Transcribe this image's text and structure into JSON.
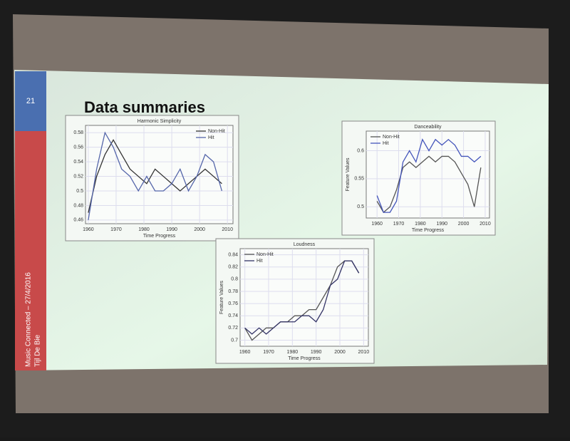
{
  "slide": {
    "number": "21",
    "title": "Data summaries",
    "footer_date": "Music Connected – 27/4/2016",
    "footer_author": "Tijl De Bie"
  },
  "chart_data": [
    {
      "type": "line",
      "title": "Harmonic Simplicity",
      "xlabel": "Time Progress",
      "legend": "upper right",
      "x": [
        1960,
        1963,
        1966,
        1969,
        1972,
        1975,
        1978,
        1981,
        1984,
        1987,
        1990,
        1993,
        1996,
        1999,
        2002,
        2005,
        2008
      ],
      "xlim": [
        1959,
        2012
      ],
      "xticks": [
        1960,
        1970,
        1980,
        1990,
        2000,
        2010
      ],
      "ylim": [
        0.455,
        0.59
      ],
      "yticks": [
        0.46,
        0.48,
        0.5,
        0.52,
        0.54,
        0.56,
        0.58
      ],
      "grid": true,
      "series": [
        {
          "name": "Non-Hit",
          "color": "#333333",
          "values": [
            0.47,
            0.52,
            0.55,
            0.57,
            0.55,
            0.53,
            0.52,
            0.51,
            0.53,
            0.52,
            0.51,
            0.5,
            0.51,
            0.52,
            0.53,
            0.52,
            0.51
          ]
        },
        {
          "name": "Hit",
          "color": "#5566aa",
          "values": [
            0.46,
            0.53,
            0.58,
            0.56,
            0.53,
            0.52,
            0.5,
            0.52,
            0.5,
            0.5,
            0.51,
            0.53,
            0.5,
            0.52,
            0.55,
            0.54,
            0.5
          ]
        }
      ]
    },
    {
      "type": "line",
      "title": "Danceability",
      "xlabel": "Time Progress",
      "ylabel": "Feature Values",
      "legend": "upper left",
      "x": [
        1960,
        1963,
        1966,
        1969,
        1972,
        1975,
        1978,
        1981,
        1984,
        1987,
        1990,
        1993,
        1996,
        1999,
        2002,
        2005,
        2008
      ],
      "xlim": [
        1955,
        2012
      ],
      "xticks": [
        1960,
        1970,
        1980,
        1990,
        2000,
        2010
      ],
      "ylim": [
        0.48,
        0.635
      ],
      "yticks": [
        0.5,
        0.55,
        0.6
      ],
      "grid": true,
      "series": [
        {
          "name": "Non-Hit",
          "color": "#555555",
          "values": [
            0.51,
            0.49,
            0.5,
            0.53,
            0.57,
            0.58,
            0.57,
            0.58,
            0.59,
            0.58,
            0.59,
            0.59,
            0.58,
            0.56,
            0.54,
            0.5,
            0.57
          ]
        },
        {
          "name": "Hit",
          "color": "#4455bb",
          "values": [
            0.52,
            0.49,
            0.49,
            0.51,
            0.58,
            0.6,
            0.58,
            0.62,
            0.6,
            0.62,
            0.61,
            0.62,
            0.61,
            0.59,
            0.59,
            0.58,
            0.59
          ]
        }
      ]
    },
    {
      "type": "line",
      "title": "Loudness",
      "xlabel": "Time Progress",
      "ylabel": "Feature Values",
      "legend": "upper left",
      "x": [
        1960,
        1963,
        1966,
        1969,
        1972,
        1975,
        1978,
        1981,
        1984,
        1987,
        1990,
        1993,
        1996,
        1999,
        2002,
        2005,
        2008
      ],
      "xlim": [
        1958,
        2012
      ],
      "xticks": [
        1960,
        1970,
        1980,
        1990,
        2000,
        2010
      ],
      "ylim": [
        0.69,
        0.85
      ],
      "yticks": [
        0.7,
        0.72,
        0.74,
        0.76,
        0.78,
        0.8,
        0.82,
        0.84
      ],
      "grid": true,
      "series": [
        {
          "name": "Non-Hit",
          "color": "#555555",
          "values": [
            0.72,
            0.7,
            0.71,
            0.72,
            0.72,
            0.73,
            0.73,
            0.74,
            0.74,
            0.75,
            0.75,
            0.77,
            0.79,
            0.82,
            0.83,
            0.83,
            0.81
          ]
        },
        {
          "name": "Hit",
          "color": "#333366",
          "values": [
            0.72,
            0.71,
            0.72,
            0.71,
            0.72,
            0.73,
            0.73,
            0.73,
            0.74,
            0.74,
            0.73,
            0.75,
            0.79,
            0.8,
            0.83,
            0.83,
            0.81
          ]
        }
      ]
    }
  ]
}
